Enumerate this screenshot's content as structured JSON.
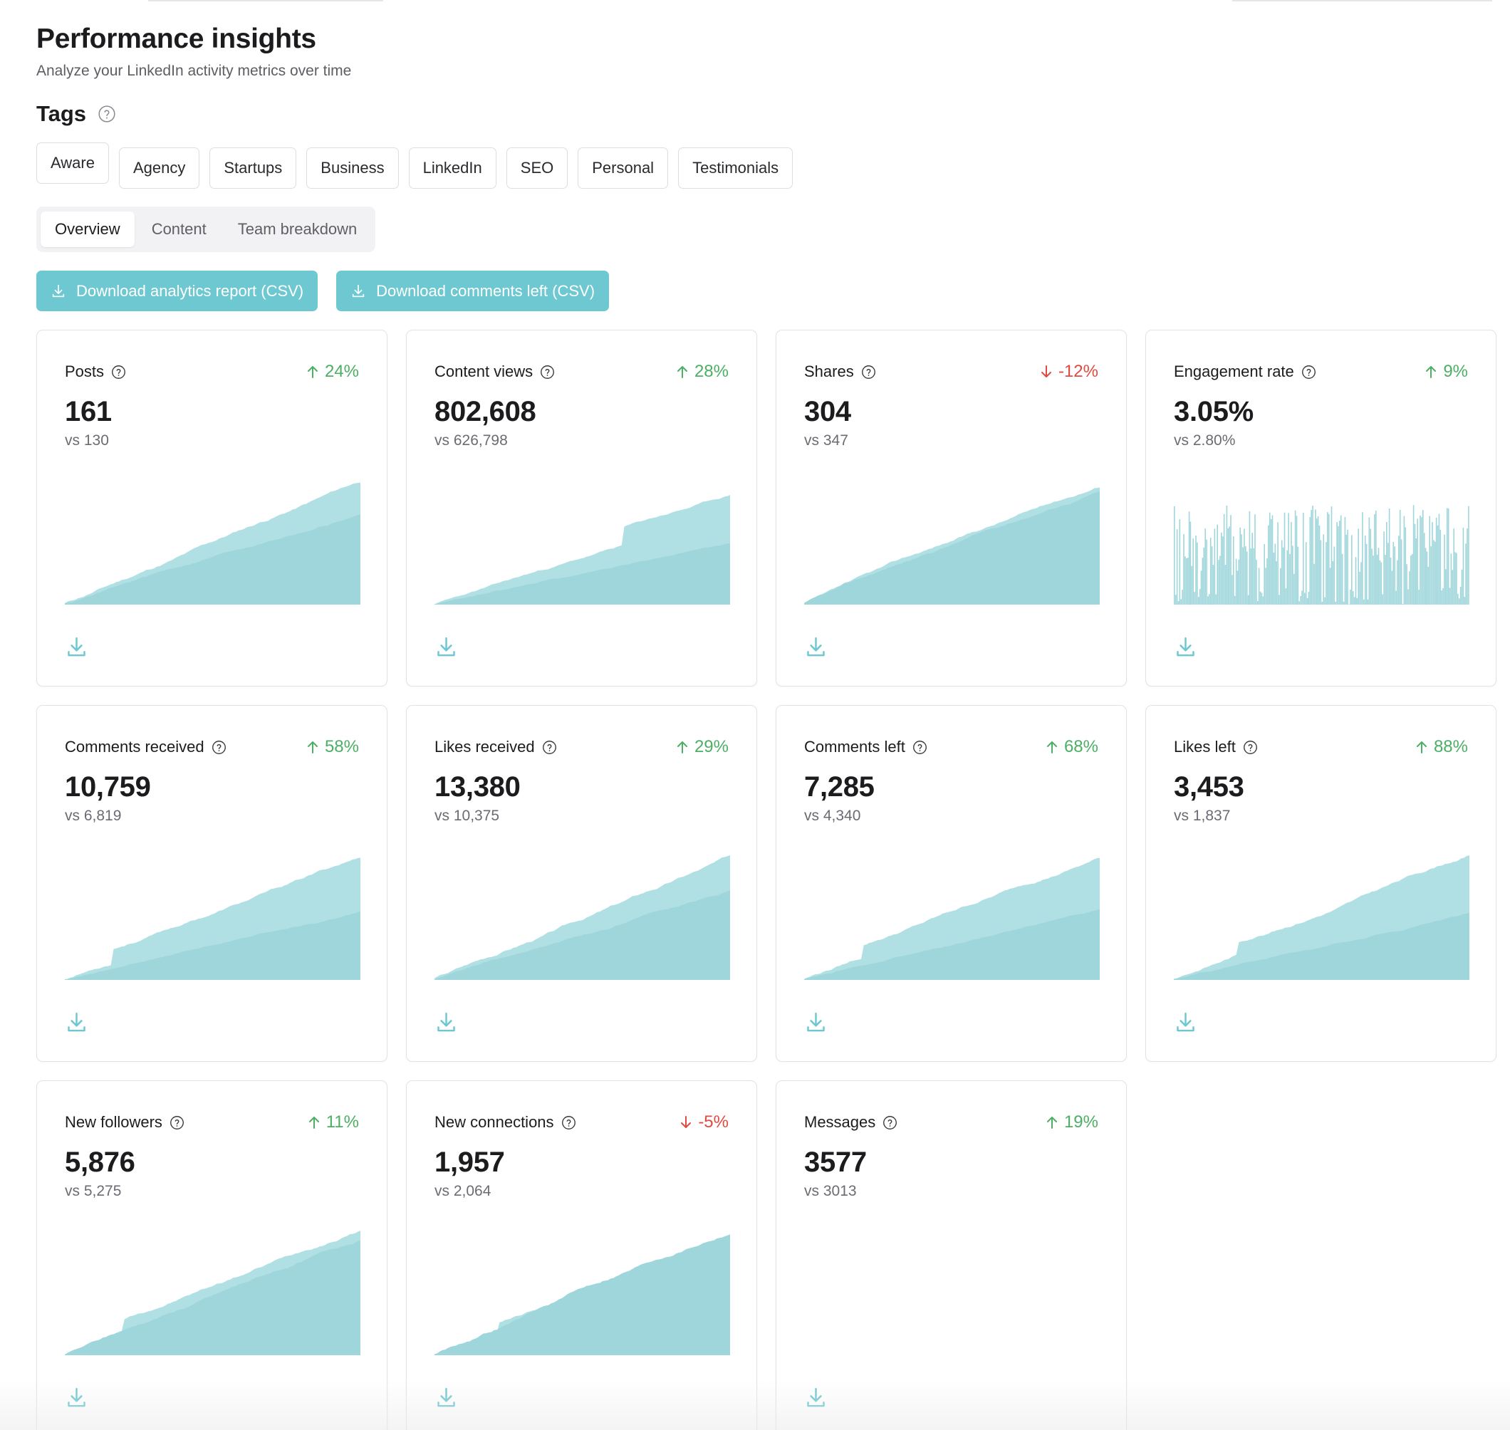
{
  "header": {
    "title": "Performance insights",
    "subtitle": "Analyze your LinkedIn activity metrics over time"
  },
  "tags_section": {
    "title": "Tags",
    "help_icon": "question-circle-icon",
    "tags": [
      "Aware",
      "Agency",
      "Startups",
      "Business",
      "LinkedIn",
      "SEO",
      "Personal",
      "Testimonials"
    ]
  },
  "tabs": [
    {
      "label": "Overview",
      "active": true
    },
    {
      "label": "Content",
      "active": false
    },
    {
      "label": "Team breakdown",
      "active": false
    }
  ],
  "actions": {
    "download_analytics": "Download analytics report (CSV)",
    "download_comments": "Download comments left (CSV)",
    "icon": "download-icon"
  },
  "colors": {
    "accent": "#6dc8d1",
    "chart_current": "#b0e0e4",
    "chart_previous": "#9fd6db",
    "positive": "#4caf64",
    "negative": "#e04a3f"
  },
  "metrics": [
    {
      "label": "Posts",
      "value": "161",
      "compare": "vs 130",
      "change": "24%",
      "direction": "up"
    },
    {
      "label": "Content views",
      "value": "802,608",
      "compare": "vs 626,798",
      "change": "28%",
      "direction": "up"
    },
    {
      "label": "Shares",
      "value": "304",
      "compare": "vs 347",
      "change": "-12%",
      "direction": "down"
    },
    {
      "label": "Engagement rate",
      "value": "3.05%",
      "compare": "vs 2.80%",
      "change": "9%",
      "direction": "up"
    },
    {
      "label": "Comments received",
      "value": "10,759",
      "compare": "vs 6,819",
      "change": "58%",
      "direction": "up"
    },
    {
      "label": "Likes received",
      "value": "13,380",
      "compare": "vs 10,375",
      "change": "29%",
      "direction": "up"
    },
    {
      "label": "Comments left",
      "value": "7,285",
      "compare": "vs 4,340",
      "change": "68%",
      "direction": "up"
    },
    {
      "label": "Likes left",
      "value": "3,453",
      "compare": "vs 1,837",
      "change": "88%",
      "direction": "up"
    },
    {
      "label": "New followers",
      "value": "5,876",
      "compare": "vs 5,275",
      "change": "11%",
      "direction": "up"
    },
    {
      "label": "New connections",
      "value": "1,957",
      "compare": "vs 2,064",
      "change": "-5%",
      "direction": "down"
    },
    {
      "label": "Messages",
      "value": "3577",
      "compare": "vs 3013",
      "change": "19%",
      "direction": "up"
    }
  ]
}
